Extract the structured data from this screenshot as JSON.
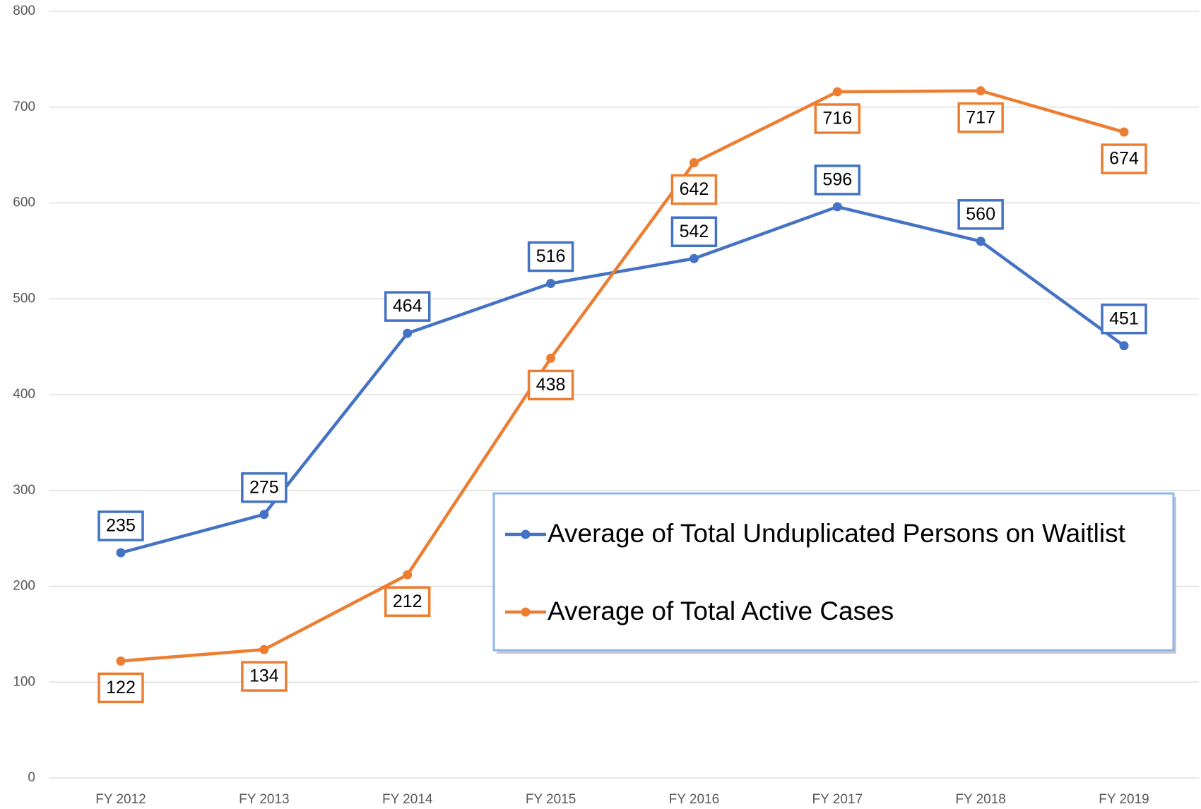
{
  "chart_data": {
    "type": "line",
    "categories": [
      "FY 2012",
      "FY 2013",
      "FY 2014",
      "FY 2015",
      "FY 2016",
      "FY 2017",
      "FY 2018",
      "FY 2019"
    ],
    "series": [
      {
        "name": "Average of Total Unduplicated Persons on Waitlist",
        "color": "#4472c4",
        "values": [
          235,
          275,
          464,
          516,
          542,
          596,
          560,
          451
        ],
        "label_side": "above"
      },
      {
        "name": "Average of Total Active Cases",
        "color": "#ed7d31",
        "values": [
          122,
          134,
          212,
          438,
          642,
          716,
          717,
          674
        ],
        "label_side": "below"
      }
    ],
    "ylim": [
      0,
      800
    ],
    "yticks": [
      0,
      100,
      200,
      300,
      400,
      500,
      600,
      700,
      800
    ],
    "grid": true,
    "legend": "lower right"
  }
}
